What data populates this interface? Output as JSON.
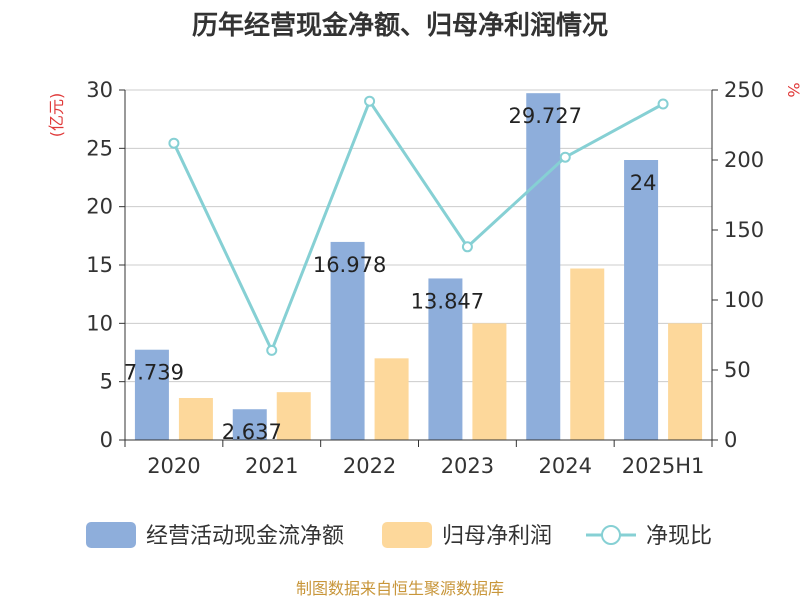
{
  "chart_data": {
    "type": "bar",
    "title": "历年经营现金净额、归母净利润情况",
    "categories": [
      "2020",
      "2021",
      "2022",
      "2023",
      "2024",
      "2025H1"
    ],
    "y_left_label": "(亿元)",
    "y_right_label": "%",
    "ylim_left": [
      0,
      30
    ],
    "ylim_right": [
      0,
      250
    ],
    "yticks_left": [
      0,
      5,
      10,
      15,
      20,
      25,
      30
    ],
    "yticks_right": [
      0,
      50,
      100,
      150,
      200,
      250
    ],
    "grid": true,
    "legend_position": "bottom",
    "series": [
      {
        "name": "经营活动现金流净额",
        "kind": "bar",
        "axis": "left",
        "color": "#8eaedb",
        "values": [
          7.739,
          2.637,
          16.978,
          13.847,
          29.727,
          24
        ],
        "labels": [
          "7.739",
          "2.637",
          "16.978",
          "13.847",
          "29.727",
          "24"
        ]
      },
      {
        "name": "归母净利润",
        "kind": "bar",
        "axis": "left",
        "color": "#fdd89b",
        "values": [
          3.6,
          4.1,
          7.0,
          10.0,
          14.7,
          10.0
        ]
      },
      {
        "name": "净现比",
        "kind": "line",
        "axis": "right",
        "color": "#86d0d4",
        "values": [
          212,
          64,
          242,
          138,
          202,
          240
        ]
      }
    ],
    "source": "制图数据来自恒生聚源数据库"
  }
}
